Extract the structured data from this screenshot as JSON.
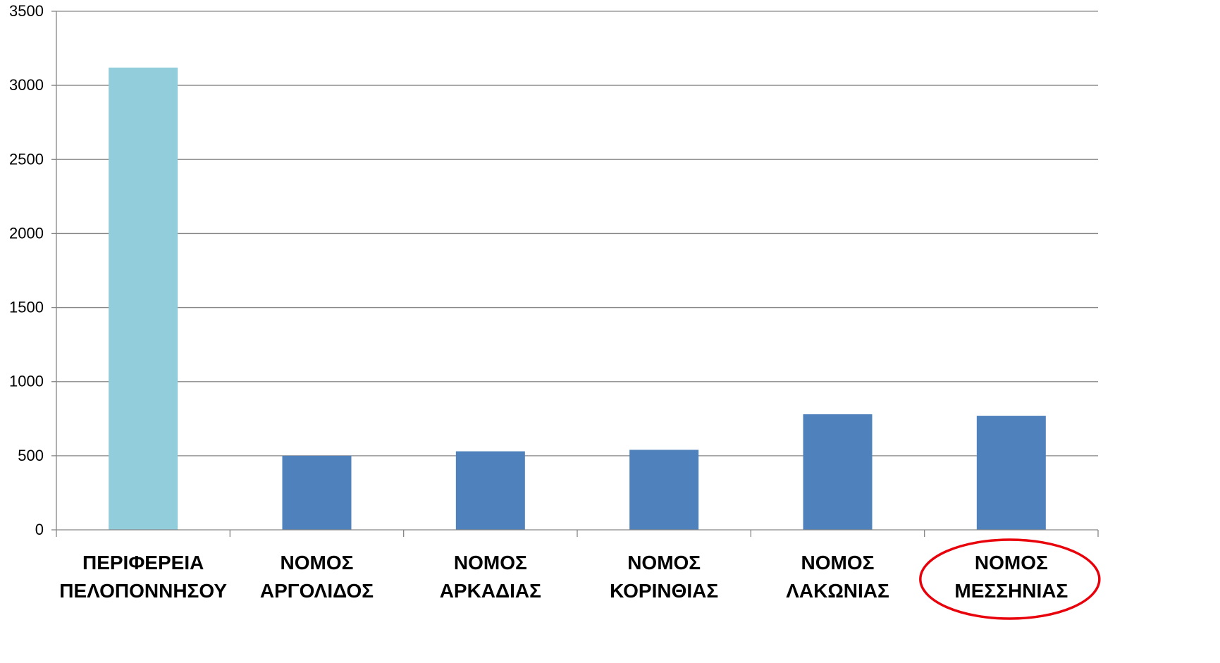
{
  "chart_data": {
    "type": "bar",
    "title": "",
    "xlabel": "",
    "ylabel": "",
    "ylim": [
      0,
      3500
    ],
    "yticks": [
      0,
      500,
      1000,
      1500,
      2000,
      2500,
      3000,
      3500
    ],
    "grid": true,
    "legend": "none",
    "categories": [
      [
        "ΠΕΡΙΦΕΡΕΙΑ",
        "ΠΕΛΟΠΟΝΝΗΣΟΥ"
      ],
      [
        "ΝΟΜΟΣ",
        "ΑΡΓΟΛΙΔΟΣ"
      ],
      [
        "ΝΟΜΟΣ",
        "ΑΡΚΑΔΙΑΣ"
      ],
      [
        "ΝΟΜΟΣ",
        "ΚΟΡΙΝΘΙΑΣ"
      ],
      [
        "ΝΟΜΟΣ",
        "ΛΑΚΩΝΙΑΣ"
      ],
      [
        "ΝΟΜΟΣ",
        "ΜΕΣΣΗΝΙΑΣ"
      ]
    ],
    "values": [
      3120,
      500,
      530,
      540,
      780,
      770
    ],
    "colors": {
      "highlight_bar": "#92CDDC",
      "bar": "#4F81BD",
      "grid": "#868686",
      "axis": "#868686",
      "annotation": "#E8000B"
    },
    "highlighted_category_index": 0,
    "circled_category_index": 5
  }
}
